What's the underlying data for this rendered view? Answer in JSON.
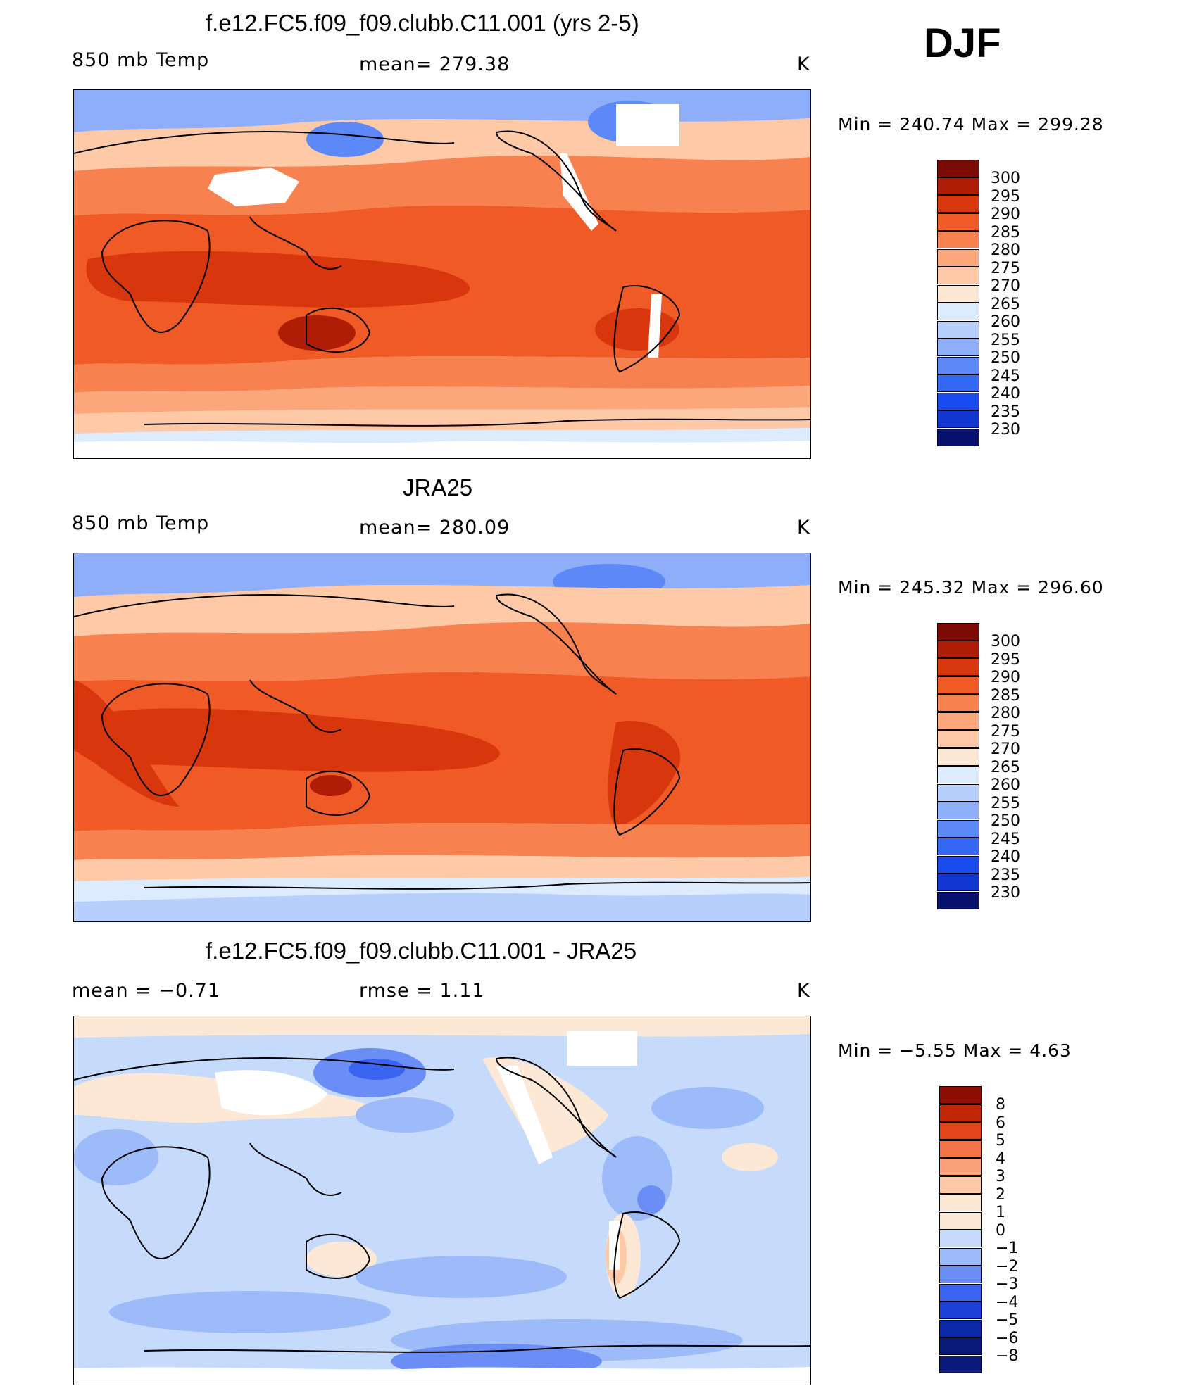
{
  "season": "DJF",
  "colors": {
    "temp": [
      "#08106e",
      "#0a1f9e",
      "#1236d2",
      "#1a4bef",
      "#3468f4",
      "#5c89f7",
      "#8eaefa",
      "#b6cffc",
      "#dcebfe",
      "#fde8d5",
      "#fdc9a6",
      "#fca67c",
      "#f8824f",
      "#f05a26",
      "#d8360c",
      "#b01d06",
      "#7a0a02"
    ],
    "diff": [
      "#0a1a7a",
      "#0b28a8",
      "#1a42d8",
      "#3a63f0",
      "#6a8ef6",
      "#9dbaf9",
      "#c6dbfc",
      "#fde8d6",
      "#fcc9a7",
      "#faa17a",
      "#f37547",
      "#e2451a",
      "#c12607",
      "#8c0d02"
    ]
  },
  "panels": [
    {
      "title": "f.e12.FC5.f09_f09.clubb.C11.001 (yrs 2-5)",
      "left": "850 mb Temp",
      "center": "mean=  279.38",
      "right": "K",
      "minmax": "Min  =  240.74  Max  =  299.28",
      "cbar_labels": [
        "300",
        "295",
        "290",
        "285",
        "280",
        "275",
        "270",
        "265",
        "260",
        "255",
        "250",
        "245",
        "240",
        "235",
        "230"
      ]
    },
    {
      "title": "JRA25",
      "left": "850 mb Temp",
      "center": "mean=  280.09",
      "right": "K",
      "minmax": "Min  =  245.32  Max  =  296.60",
      "cbar_labels": [
        "300",
        "295",
        "290",
        "285",
        "280",
        "275",
        "270",
        "265",
        "260",
        "255",
        "250",
        "245",
        "240",
        "235",
        "230"
      ]
    },
    {
      "title": "f.e12.FC5.f09_f09.clubb.C11.001 - JRA25",
      "left": "mean  =    −0.71",
      "center": "rmse  =     1.11",
      "right": "K",
      "minmax": "Min  =    −5.55  Max  =      4.63",
      "cbar_labels": [
        "8",
        "6",
        "5",
        "4",
        "3",
        "2",
        "1",
        "0",
        "−1",
        "−2",
        "−3",
        "−4",
        "−5",
        "−6",
        "−8"
      ]
    }
  ]
}
